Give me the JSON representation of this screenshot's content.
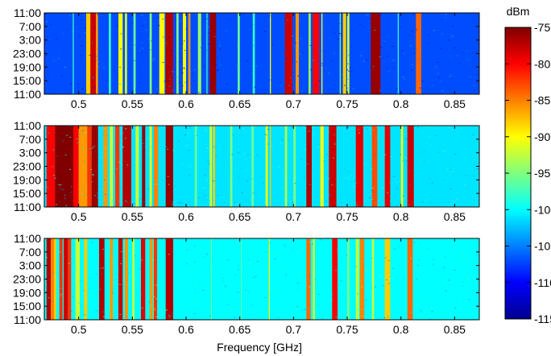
{
  "chart_data": {
    "type": "heatmap",
    "xlabel": "Frequency [GHz]",
    "xlim": [
      0.468,
      0.873
    ],
    "x_ticks": [
      0.5,
      0.55,
      0.6,
      0.65,
      0.7,
      0.75,
      0.8,
      0.85
    ],
    "x_tick_labels": [
      "0.5",
      "0.55",
      "0.6",
      "0.65",
      "0.7",
      "0.75",
      "0.8",
      "0.85"
    ],
    "y_tick_labels": [
      "11:00",
      "7:00",
      "3:00",
      "23:00",
      "19:00",
      "15:00",
      "11:00"
    ],
    "colorbar": {
      "label": "dBm",
      "range": [
        -115,
        -75
      ],
      "ticks": [
        -75,
        -80,
        -85,
        -90,
        -95,
        -100,
        -105,
        -110,
        -115
      ],
      "colormap": "jet"
    },
    "panels": [
      {
        "background_dbm": -107,
        "bands": [
          {
            "f": [
              0.4945,
              0.4955
            ],
            "dbm": -98
          },
          {
            "f": [
              0.507,
              0.511
            ],
            "dbm": -88
          },
          {
            "f": [
              0.511,
              0.516
            ],
            "dbm": -78
          },
          {
            "f": [
              0.516,
              0.518
            ],
            "dbm": -86
          },
          {
            "f": [
              0.528,
              0.53
            ],
            "dbm": -98
          },
          {
            "f": [
              0.537,
              0.541
            ],
            "dbm": -90
          },
          {
            "f": [
              0.543,
              0.545
            ],
            "dbm": -92
          },
          {
            "f": [
              0.551,
              0.553
            ],
            "dbm": -96
          },
          {
            "f": [
              0.566,
              0.568
            ],
            "dbm": -95
          },
          {
            "f": [
              0.575,
              0.58
            ],
            "dbm": -90
          },
          {
            "f": [
              0.581,
              0.588
            ],
            "dbm": -77
          },
          {
            "f": [
              0.591,
              0.593
            ],
            "dbm": -95
          },
          {
            "f": [
              0.597,
              0.6
            ],
            "dbm": -90
          },
          {
            "f": [
              0.602,
              0.604
            ],
            "dbm": -86
          },
          {
            "f": [
              0.611,
              0.614
            ],
            "dbm": -94
          },
          {
            "f": [
              0.619,
              0.62
            ],
            "dbm": -98
          },
          {
            "f": [
              0.622,
              0.628
            ],
            "dbm": -76
          },
          {
            "f": [
              0.648,
              0.65
            ],
            "dbm": -96
          },
          {
            "f": [
              0.662,
              0.664
            ],
            "dbm": -98
          },
          {
            "f": [
              0.678,
              0.679
            ],
            "dbm": -90
          },
          {
            "f": [
              0.692,
              0.699
            ],
            "dbm": -78
          },
          {
            "f": [
              0.702,
              0.705
            ],
            "dbm": -86
          },
          {
            "f": [
              0.714,
              0.716
            ],
            "dbm": -94
          },
          {
            "f": [
              0.718,
              0.724
            ],
            "dbm": -80
          },
          {
            "f": [
              0.726,
              0.727
            ],
            "dbm": -90
          },
          {
            "f": [
              0.743,
              0.744
            ],
            "dbm": -95
          },
          {
            "f": [
              0.746,
              0.749
            ],
            "dbm": -88
          },
          {
            "f": [
              0.75,
              0.752
            ],
            "dbm": -92
          },
          {
            "f": [
              0.772,
              0.781
            ],
            "dbm": -76
          },
          {
            "f": [
              0.797,
              0.798
            ],
            "dbm": -98
          },
          {
            "f": [
              0.814,
              0.819
            ],
            "dbm": -84
          }
        ]
      },
      {
        "background_dbm": -101,
        "bands": [
          {
            "f": [
              0.47,
              0.478
            ],
            "dbm": -80
          },
          {
            "f": [
              0.478,
              0.495
            ],
            "dbm": -75
          },
          {
            "f": [
              0.495,
              0.5
            ],
            "dbm": -80
          },
          {
            "f": [
              0.5,
              0.508
            ],
            "dbm": -86
          },
          {
            "f": [
              0.508,
              0.512
            ],
            "dbm": -82
          },
          {
            "f": [
              0.512,
              0.518
            ],
            "dbm": -76
          },
          {
            "f": [
              0.523,
              0.527
            ],
            "dbm": -86
          },
          {
            "f": [
              0.529,
              0.532
            ],
            "dbm": -92
          },
          {
            "f": [
              0.534,
              0.538
            ],
            "dbm": -82
          },
          {
            "f": [
              0.541,
              0.549
            ],
            "dbm": -77
          },
          {
            "f": [
              0.553,
              0.556
            ],
            "dbm": -92
          },
          {
            "f": [
              0.559,
              0.562
            ],
            "dbm": -76
          },
          {
            "f": [
              0.566,
              0.568
            ],
            "dbm": -90
          },
          {
            "f": [
              0.57,
              0.574
            ],
            "dbm": -85
          },
          {
            "f": [
              0.581,
              0.588
            ],
            "dbm": -76
          },
          {
            "f": [
              0.608,
              0.61
            ],
            "dbm": -96
          },
          {
            "f": [
              0.622,
              0.624
            ],
            "dbm": -92
          },
          {
            "f": [
              0.625,
              0.627
            ],
            "dbm": -88
          },
          {
            "f": [
              0.641,
              0.643
            ],
            "dbm": -95
          },
          {
            "f": [
              0.661,
              0.663
            ],
            "dbm": -96
          },
          {
            "f": [
              0.674,
              0.676
            ],
            "dbm": -90
          },
          {
            "f": [
              0.678,
              0.679
            ],
            "dbm": -88
          },
          {
            "f": [
              0.692,
              0.694
            ],
            "dbm": -93
          },
          {
            "f": [
              0.7,
              0.702
            ],
            "dbm": -95
          },
          {
            "f": [
              0.712,
              0.717
            ],
            "dbm": -77
          },
          {
            "f": [
              0.725,
              0.728
            ],
            "dbm": -90
          },
          {
            "f": [
              0.733,
              0.74
            ],
            "dbm": -78
          },
          {
            "f": [
              0.758,
              0.765
            ],
            "dbm": -79
          },
          {
            "f": [
              0.773,
              0.778
            ],
            "dbm": -83
          },
          {
            "f": [
              0.785,
              0.79
            ],
            "dbm": -79
          },
          {
            "f": [
              0.8,
              0.802
            ],
            "dbm": -90
          },
          {
            "f": [
              0.806,
              0.812
            ],
            "dbm": -78
          }
        ]
      },
      {
        "background_dbm": -100,
        "bands": [
          {
            "f": [
              0.47,
              0.474
            ],
            "dbm": -77
          },
          {
            "f": [
              0.474,
              0.477
            ],
            "dbm": -85
          },
          {
            "f": [
              0.477,
              0.479
            ],
            "dbm": -88
          },
          {
            "f": [
              0.482,
              0.485
            ],
            "dbm": -82
          },
          {
            "f": [
              0.486,
              0.49
            ],
            "dbm": -78
          },
          {
            "f": [
              0.49,
              0.493
            ],
            "dbm": -82
          },
          {
            "f": [
              0.497,
              0.501
            ],
            "dbm": -92
          },
          {
            "f": [
              0.505,
              0.508
            ],
            "dbm": -88
          },
          {
            "f": [
              0.519,
              0.524
            ],
            "dbm": -77
          },
          {
            "f": [
              0.529,
              0.532
            ],
            "dbm": -86
          },
          {
            "f": [
              0.537,
              0.541
            ],
            "dbm": -78
          },
          {
            "f": [
              0.543,
              0.546
            ],
            "dbm": -86
          },
          {
            "f": [
              0.55,
              0.552
            ],
            "dbm": -92
          },
          {
            "f": [
              0.558,
              0.562
            ],
            "dbm": -79
          },
          {
            "f": [
              0.566,
              0.569
            ],
            "dbm": -86
          },
          {
            "f": [
              0.57,
              0.573
            ],
            "dbm": -82
          },
          {
            "f": [
              0.581,
              0.588
            ],
            "dbm": -77
          },
          {
            "f": [
              0.623,
              0.624
            ],
            "dbm": -96
          },
          {
            "f": [
              0.651,
              0.652
            ],
            "dbm": -97
          },
          {
            "f": [
              0.677,
              0.678
            ],
            "dbm": -90
          },
          {
            "f": [
              0.712,
              0.716
            ],
            "dbm": -84
          },
          {
            "f": [
              0.718,
              0.72
            ],
            "dbm": -92
          },
          {
            "f": [
              0.736,
              0.741
            ],
            "dbm": -80
          },
          {
            "f": [
              0.75,
              0.752
            ],
            "dbm": -95
          },
          {
            "f": [
              0.758,
              0.761
            ],
            "dbm": -92
          },
          {
            "f": [
              0.762,
              0.766
            ],
            "dbm": -85
          },
          {
            "f": [
              0.773,
              0.775
            ],
            "dbm": -92
          },
          {
            "f": [
              0.785,
              0.79
            ],
            "dbm": -88
          },
          {
            "f": [
              0.806,
              0.811
            ],
            "dbm": -84
          }
        ]
      }
    ]
  }
}
